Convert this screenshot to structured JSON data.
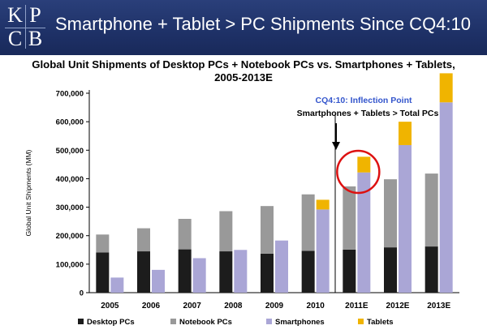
{
  "header": {
    "logo_letters": [
      "K",
      "P",
      "C",
      "B"
    ],
    "title": "Smartphone + Tablet > PC Shipments Since CQ4:10"
  },
  "chart_data": {
    "type": "bar",
    "stacked": true,
    "title_line1": "Global Unit Shipments of Desktop PCs + Notebook PCs vs. Smartphones + Tablets,",
    "title_line2": "2005-2013E",
    "ylabel": "Global Unit Shipments (MM)",
    "ylim": [
      0,
      700000
    ],
    "yticks": [
      0,
      100000,
      200000,
      300000,
      400000,
      500000,
      600000,
      700000
    ],
    "ytick_labels": [
      "0",
      "100,000",
      "200,000",
      "300,000",
      "400,000",
      "500,000",
      "600,000",
      "700,000"
    ],
    "categories": [
      "2005",
      "2006",
      "2007",
      "2008",
      "2009",
      "2010",
      "2011E",
      "2012E",
      "2013E"
    ],
    "pc_stack": {
      "desktop": [
        141000,
        145000,
        152000,
        145000,
        137000,
        147000,
        151000,
        159000,
        162000
      ],
      "notebook": [
        63000,
        81000,
        107000,
        141000,
        167000,
        198000,
        222000,
        239000,
        256000
      ]
    },
    "mobile_stack": {
      "smartphones": [
        53000,
        80000,
        121000,
        150000,
        183000,
        292000,
        422000,
        518000,
        668000
      ],
      "tablets": [
        0,
        0,
        0,
        0,
        0,
        34000,
        55000,
        82000,
        102000
      ]
    },
    "series_colors": {
      "desktop": "#1c1c1c",
      "notebook": "#999999",
      "smartphones": "#aaa6d6",
      "tablets": "#f0b400"
    },
    "legend": [
      "Desktop PCs",
      "Notebook PCs",
      "Smartphones",
      "Tablets"
    ],
    "annotation": {
      "label": "CQ4:10: Inflection Point",
      "label_color": "#3355cc",
      "text": "Smartphones + Tablets > Total PCs",
      "highlight_category": "2011E",
      "circle_color": "#dd1111"
    }
  }
}
